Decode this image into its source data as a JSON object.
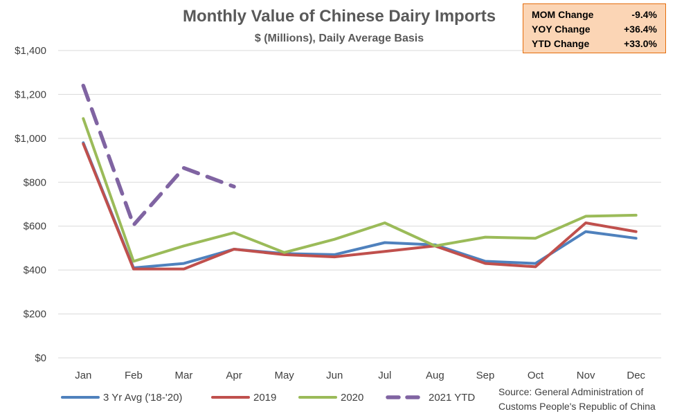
{
  "chart_data": {
    "type": "line",
    "title": "Monthly Value of Chinese Dairy Imports",
    "subtitle": "$ (Millions), Daily Average Basis",
    "categories": [
      "Jan",
      "Feb",
      "Mar",
      "Apr",
      "May",
      "Jun",
      "Jul",
      "Aug",
      "Sep",
      "Oct",
      "Nov",
      "Dec"
    ],
    "ylim": [
      0,
      1400
    ],
    "yticks": [
      "$0",
      "$200",
      "$400",
      "$600",
      "$800",
      "$1,000",
      "$1,200",
      "$1,400"
    ],
    "grid": true,
    "legend_position": "bottom",
    "series": [
      {
        "name": "3 Yr Avg ('18-'20)",
        "color": "#4f81bd",
        "dash": "solid",
        "values": [
          980,
          410,
          430,
          495,
          475,
          470,
          525,
          515,
          440,
          430,
          575,
          545
        ]
      },
      {
        "name": "2019",
        "color": "#c0504d",
        "dash": "solid",
        "values": [
          975,
          405,
          405,
          495,
          470,
          460,
          485,
          510,
          430,
          415,
          615,
          575
        ]
      },
      {
        "name": "2020",
        "color": "#9bbb59",
        "dash": "solid",
        "values": [
          1090,
          440,
          510,
          570,
          480,
          540,
          615,
          510,
          550,
          545,
          645,
          650
        ]
      },
      {
        "name": "2021 YTD",
        "color": "#8064a2",
        "dash": "dashed",
        "values": [
          1240,
          605,
          865,
          780,
          null,
          null,
          null,
          null,
          null,
          null,
          null,
          null
        ]
      }
    ],
    "stats": [
      {
        "label": "MOM Change",
        "value": "-9.4%"
      },
      {
        "label": "YOY Change",
        "value": "+36.4%"
      },
      {
        "label": "YTD Change",
        "value": "+33.0%"
      }
    ],
    "source_lines": [
      "Source: General Administration of",
      "Customs People's Republic of China"
    ]
  }
}
